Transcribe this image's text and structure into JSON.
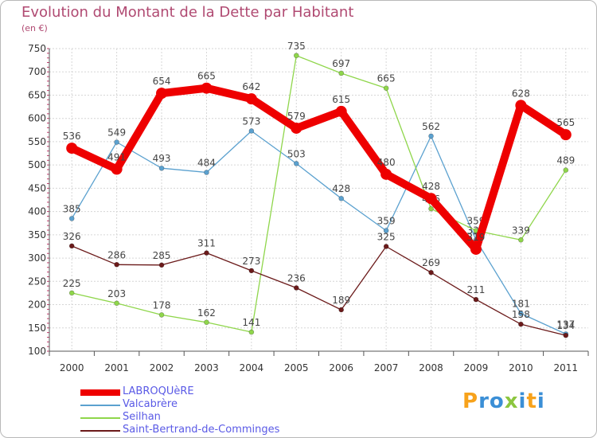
{
  "title": "Evolution du Montant de la Dette par Habitant",
  "subtitle": "(en €)",
  "brand": {
    "text": "Proxiti",
    "colors": [
      "#f7a21b",
      "#3b8fd6",
      "#3b8fd6",
      "#8cc63f",
      "#3b8fd6",
      "#f7a21b",
      "#3b8fd6"
    ]
  },
  "chart_data": {
    "type": "line",
    "title": "Evolution du Montant de la Dette par Habitant",
    "ylabel": "(en €)",
    "xlabel": "",
    "x": [
      "2000",
      "2001",
      "2002",
      "2003",
      "2004",
      "2005",
      "2006",
      "2007",
      "2008",
      "2009",
      "2010",
      "2011"
    ],
    "ylim": [
      100,
      750
    ],
    "yticks": [
      100,
      150,
      200,
      250,
      300,
      350,
      400,
      450,
      500,
      550,
      600,
      650,
      700,
      750
    ],
    "grid": true,
    "legend": "bottom-left",
    "series": [
      {
        "name": "LABROQUèRE",
        "color": "#ee0000",
        "bold": true,
        "values": [
          536,
          491,
          654,
          665,
          642,
          579,
          615,
          480,
          428,
          319,
          628,
          565
        ],
        "labels": [
          "536",
          "491",
          "654",
          "665",
          "642",
          "579",
          "615",
          "480",
          "428",
          "319",
          "628",
          "565"
        ]
      },
      {
        "name": "Valcabrère",
        "color": "#5ba1cf",
        "bold": false,
        "values": [
          385,
          549,
          493,
          484,
          573,
          503,
          428,
          359,
          562,
          339,
          181,
          137
        ],
        "labels": [
          "385",
          "549",
          "493",
          "484",
          "573",
          "503",
          "428",
          "359",
          "562",
          "339",
          "181",
          "137"
        ]
      },
      {
        "name": "Seilhan",
        "color": "#8fd64b",
        "bold": false,
        "values": [
          225,
          203,
          178,
          162,
          141,
          735,
          697,
          665,
          406,
          359,
          339,
          489
        ],
        "labels": [
          "225",
          "203",
          "178",
          "162",
          "141",
          "735",
          "697",
          "665",
          "406",
          "359",
          "339",
          "489"
        ]
      },
      {
        "name": "Saint-Bertrand-de-Comminges",
        "color": "#6b1a1a",
        "bold": false,
        "values": [
          326,
          286,
          285,
          311,
          273,
          236,
          189,
          325,
          269,
          211,
          158,
          134
        ],
        "labels": [
          "326",
          "286",
          "285",
          "311",
          "273",
          "236",
          "189",
          "325",
          "269",
          "211",
          "158",
          "134"
        ]
      }
    ]
  }
}
